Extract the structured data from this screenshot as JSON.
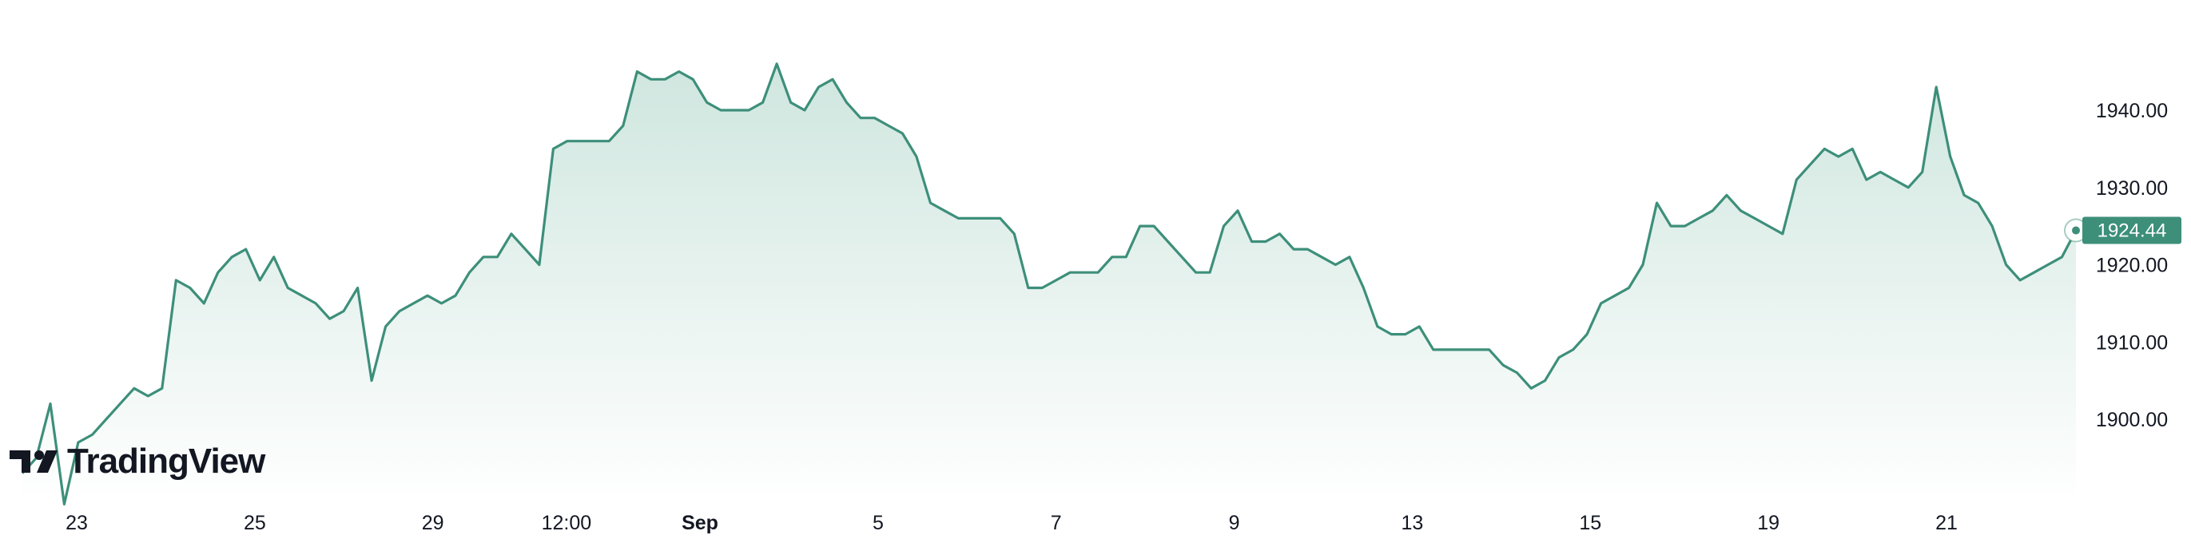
{
  "brand": {
    "name": "TradingView"
  },
  "colors": {
    "line": "#3d8f7a",
    "area_top": "#cfe6df",
    "area_bottom": "#ffffff",
    "badge": "#3d8f7a",
    "text": "#131722"
  },
  "chart_data": {
    "type": "area",
    "title": "",
    "xlabel": "",
    "ylabel": "",
    "ylim": [
      1887,
      1950
    ],
    "grid": false,
    "last_value_label": "1924.44",
    "y_ticks": [
      "1940.00",
      "1930.00",
      "1920.00",
      "1910.00",
      "1900.00"
    ],
    "y_tick_values": [
      1940,
      1930,
      1920,
      1910,
      1900
    ],
    "x_ticks": [
      {
        "label": "23",
        "bold": false,
        "index": 7
      },
      {
        "label": "25",
        "bold": false,
        "index": 23
      },
      {
        "label": "29",
        "bold": false,
        "index": 39
      },
      {
        "label": "12:00",
        "bold": false,
        "index": 51
      },
      {
        "label": "Sep",
        "bold": true,
        "index": 63
      },
      {
        "label": "5",
        "bold": false,
        "index": 79
      },
      {
        "label": "7",
        "bold": false,
        "index": 95
      },
      {
        "label": "9",
        "bold": false,
        "index": 111
      },
      {
        "label": "13",
        "bold": false,
        "index": 127
      },
      {
        "label": "15",
        "bold": false,
        "index": 143
      },
      {
        "label": "19",
        "bold": false,
        "index": 159
      },
      {
        "label": "21",
        "bold": false,
        "index": 175
      }
    ],
    "series": [
      {
        "values": [
          1893,
          1895,
          1902,
          1889,
          1897,
          1898,
          1900,
          1902,
          1904,
          1903,
          1904,
          1918,
          1917,
          1915,
          1919,
          1921,
          1922,
          1918,
          1921,
          1917,
          1916,
          1915,
          1913,
          1914,
          1917,
          1905,
          1912,
          1914,
          1915,
          1916,
          1915,
          1916,
          1919,
          1921,
          1921,
          1924,
          1922,
          1920,
          1935,
          1936,
          1936,
          1936,
          1936,
          1938,
          1945,
          1944,
          1944,
          1945,
          1944,
          1941,
          1940,
          1940,
          1940,
          1941,
          1946,
          1941,
          1940,
          1943,
          1944,
          1941,
          1939,
          1939,
          1938,
          1937,
          1934,
          1928,
          1927,
          1926,
          1926,
          1926,
          1926,
          1924,
          1917,
          1917,
          1918,
          1919,
          1919,
          1919,
          1921,
          1921,
          1925,
          1925,
          1923,
          1921,
          1919,
          1919,
          1925,
          1927,
          1923,
          1923,
          1924,
          1922,
          1922,
          1921,
          1920,
          1921,
          1917,
          1912,
          1911,
          1911,
          1912,
          1909,
          1909,
          1909,
          1909,
          1909,
          1907,
          1906,
          1904,
          1905,
          1908,
          1909,
          1911,
          1915,
          1916,
          1917,
          1920,
          1928,
          1925,
          1925,
          1926,
          1927,
          1929,
          1927,
          1926,
          1925,
          1924,
          1931,
          1933,
          1935,
          1934,
          1935,
          1931,
          1932,
          1931,
          1930,
          1932,
          1943,
          1934,
          1929,
          1928,
          1925,
          1920,
          1918,
          1919,
          1920,
          1921,
          1924.44
        ]
      }
    ]
  }
}
